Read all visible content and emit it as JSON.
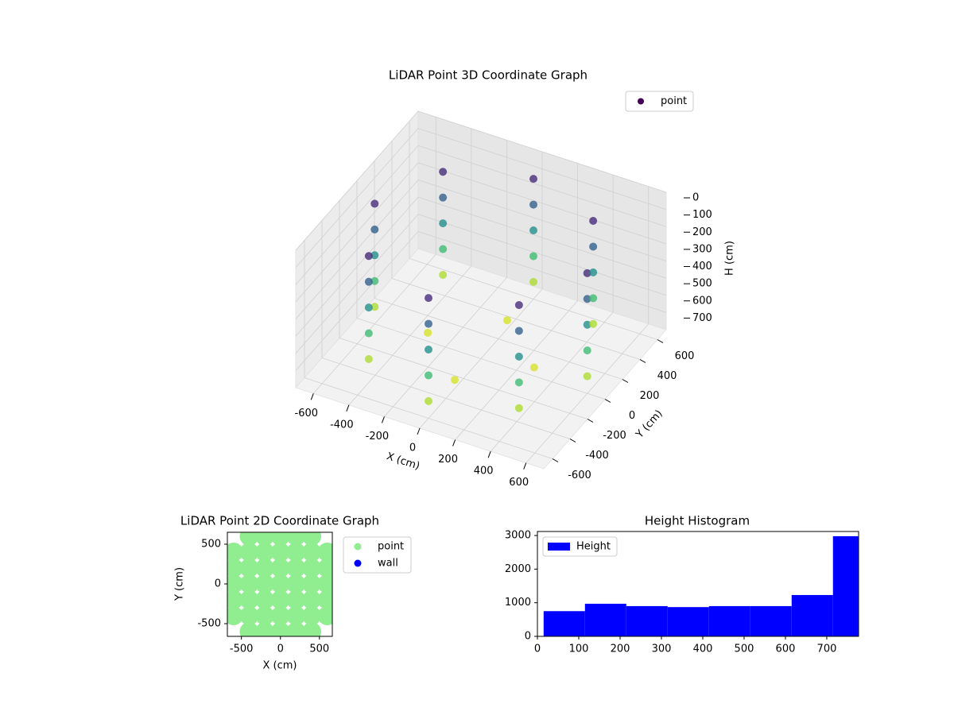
{
  "chart_data": [
    {
      "type": "scatter3d",
      "title": "LiDAR Point 3D Coordinate Graph",
      "xlabel": "X (cm)",
      "ylabel": "Y (cm)",
      "zlabel": "H (cm)",
      "xlim": [
        -700,
        700
      ],
      "ylim": [
        -700,
        700
      ],
      "zlim": [
        0,
        800
      ],
      "z_inverted": true,
      "xticks": [
        -600,
        -400,
        -200,
        0,
        200,
        400,
        600
      ],
      "yticks": [
        -600,
        -400,
        -200,
        0,
        200,
        400,
        600
      ],
      "zticks": [
        0,
        100,
        200,
        300,
        400,
        500,
        600,
        700
      ],
      "colormap": "viridis",
      "legend": "upper right",
      "series": [
        {
          "name": "point",
          "color": "#440154",
          "x": [
            600,
            600,
            600,
            600,
            600,
            424,
            424,
            424,
            424,
            424,
            0,
            0,
            0,
            0,
            0,
            -424,
            -424,
            -424,
            -424,
            -424,
            -600,
            -600,
            -600,
            -600,
            -600,
            -424,
            -424,
            -424,
            -424,
            -424,
            0,
            0,
            0,
            0,
            0,
            424,
            424,
            424,
            424,
            424,
            300,
            0,
            -300,
            0
          ],
          "y": [
            0,
            0,
            0,
            0,
            0,
            424,
            424,
            424,
            424,
            424,
            600,
            600,
            600,
            600,
            600,
            424,
            424,
            424,
            424,
            424,
            0,
            0,
            0,
            0,
            0,
            -424,
            -424,
            -424,
            -424,
            -424,
            -600,
            -600,
            -600,
            -600,
            -600,
            -424,
            -424,
            -424,
            -424,
            -424,
            0,
            300,
            0,
            -300
          ],
          "z": [
            100,
            250,
            400,
            550,
            700,
            100,
            250,
            400,
            550,
            700,
            100,
            250,
            400,
            550,
            700,
            100,
            250,
            400,
            550,
            700,
            100,
            250,
            400,
            550,
            700,
            100,
            250,
            400,
            550,
            700,
            100,
            250,
            400,
            550,
            700,
            100,
            250,
            400,
            550,
            700,
            750,
            750,
            750,
            750
          ]
        }
      ]
    },
    {
      "type": "scatter",
      "title": "LiDAR Point 2D Coordinate Graph",
      "xlabel": "X (cm)",
      "ylabel": "Y (cm)",
      "xlim": [
        -680,
        665
      ],
      "ylim": [
        -660,
        650
      ],
      "xticks": [
        -500,
        0,
        500
      ],
      "yticks": [
        -500,
        0,
        500
      ],
      "legend": "outside right",
      "series": [
        {
          "name": "point",
          "color": "#90ee90",
          "x": [
            -400,
            -200,
            0,
            200,
            400,
            -600,
            -400,
            -200,
            0,
            200,
            400,
            600,
            -600,
            -400,
            -200,
            0,
            200,
            400,
            600,
            -600,
            -400,
            -200,
            0,
            200,
            400,
            600,
            -600,
            -400,
            -200,
            0,
            200,
            400,
            600,
            -600,
            -400,
            -200,
            0,
            200,
            400,
            600,
            -400,
            -200,
            0,
            200,
            400
          ],
          "y": [
            -600,
            -600,
            -600,
            -600,
            -600,
            -400,
            -400,
            -400,
            -400,
            -400,
            -400,
            -400,
            -200,
            -200,
            -200,
            -200,
            -200,
            -200,
            -200,
            0,
            0,
            0,
            0,
            0,
            0,
            0,
            200,
            200,
            200,
            200,
            200,
            200,
            200,
            400,
            400,
            400,
            400,
            400,
            400,
            400,
            600,
            600,
            600,
            600,
            600
          ]
        },
        {
          "name": "wall",
          "color": "#0000ff",
          "x": [],
          "y": []
        }
      ]
    },
    {
      "type": "histogram",
      "title": "Height Histogram",
      "bins": [
        15,
        115,
        215,
        315,
        415,
        515,
        615,
        715,
        777
      ],
      "counts": [
        750,
        970,
        900,
        870,
        900,
        900,
        1230,
        2980
      ],
      "series_name": "Height",
      "color": "#0000ff",
      "legend": "upper left",
      "xlim": [
        0,
        777
      ],
      "ylim": [
        0,
        3120
      ],
      "xticks": [
        0,
        100,
        200,
        300,
        400,
        500,
        600,
        700
      ],
      "yticks": [
        0,
        1000,
        2000,
        3000
      ]
    }
  ]
}
